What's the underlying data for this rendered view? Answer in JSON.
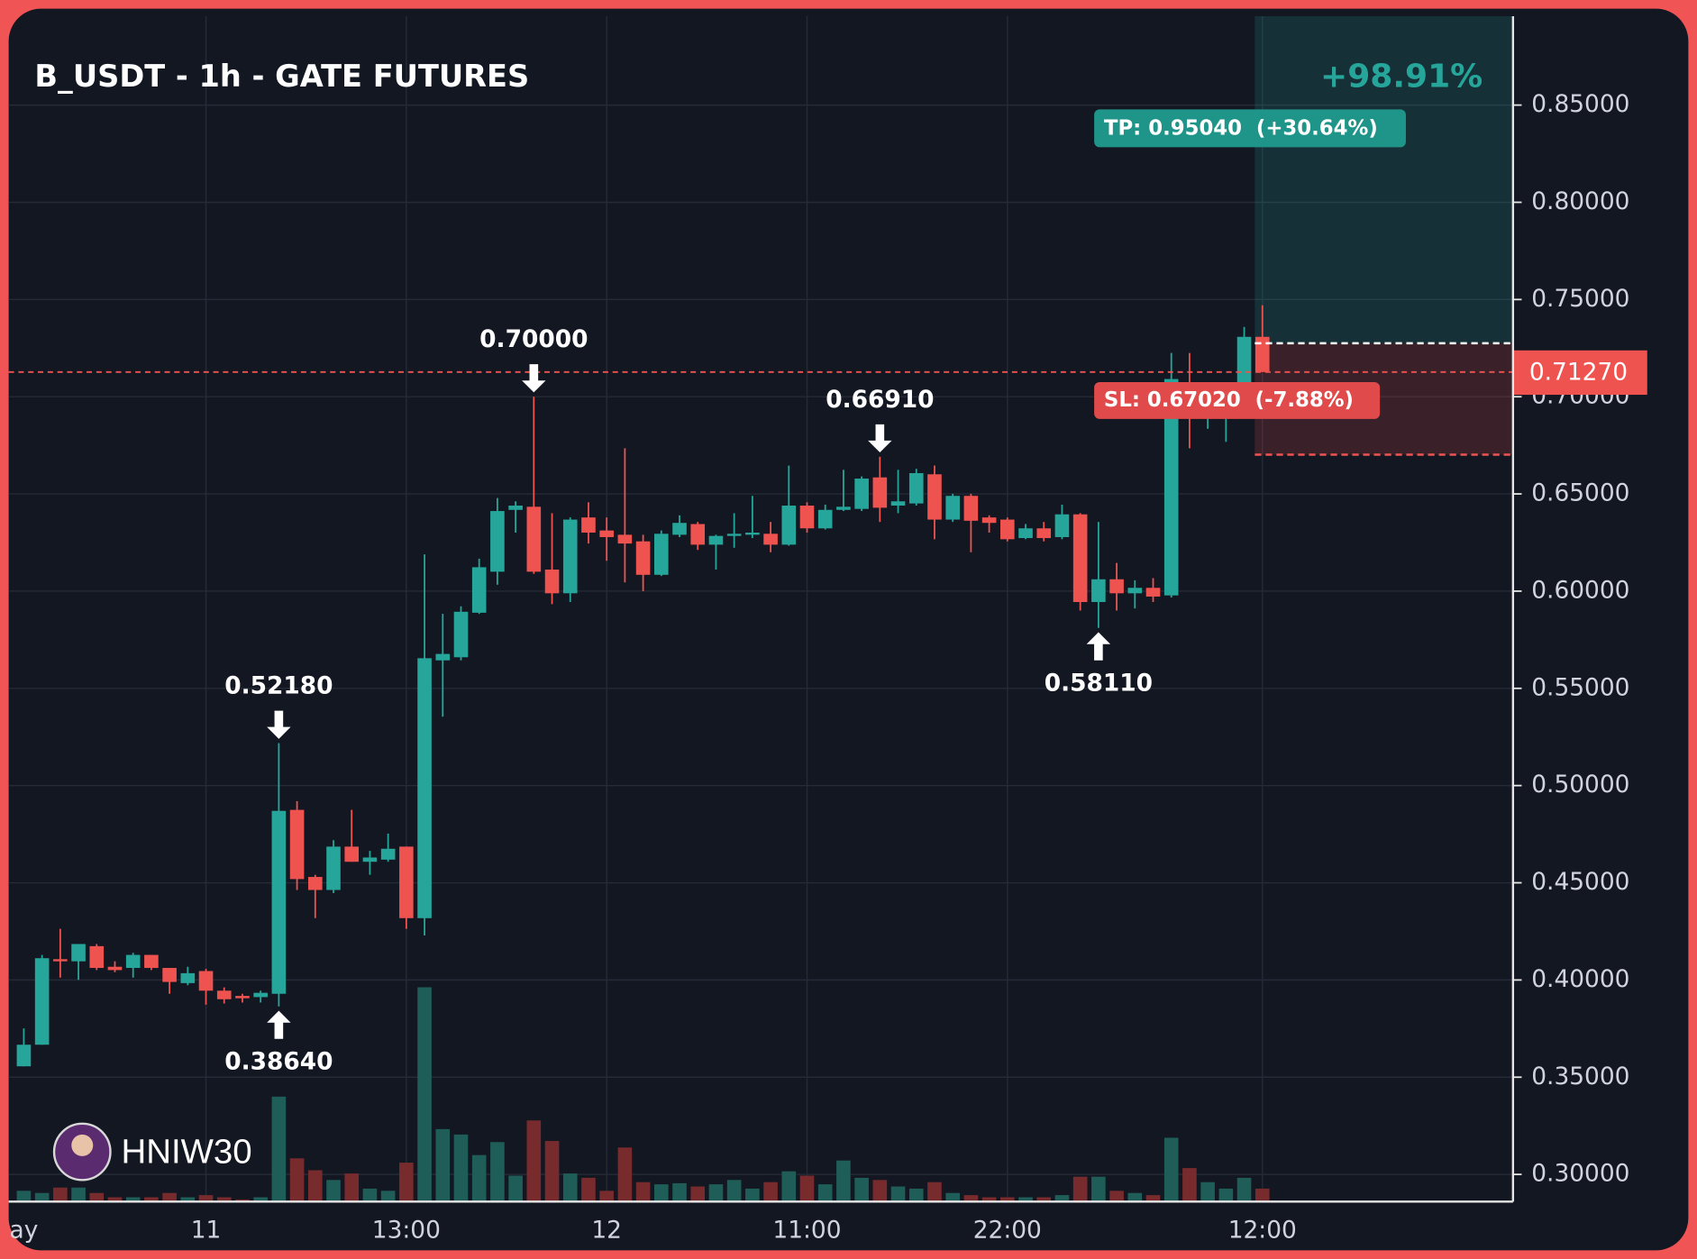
{
  "chart_data": {
    "type": "candlestick",
    "title": "B_USDT - 1h - GATE FUTURES",
    "watermark": "HNIW30",
    "up_color": "#26a69a",
    "down_color": "#ef5350",
    "up_volume_color": "#1f5d58",
    "down_volume_color": "#772b2c",
    "grid": true,
    "categories": [
      "ay",
      null,
      null,
      null,
      null,
      null,
      null,
      null,
      null,
      null,
      "11",
      null,
      null,
      null,
      null,
      null,
      null,
      null,
      null,
      null,
      null,
      "13:00",
      null,
      null,
      null,
      null,
      null,
      null,
      null,
      null,
      null,
      null,
      "12",
      null,
      null,
      null,
      null,
      null,
      null,
      null,
      null,
      null,
      null,
      "11:00",
      null,
      null,
      null,
      null,
      null,
      null,
      null,
      null,
      null,
      null,
      "22:00",
      null,
      null,
      null,
      null,
      null,
      null,
      null,
      null,
      null,
      null,
      null,
      null,
      null,
      "12:00"
    ],
    "open": [
      0.3556,
      0.3667,
      0.4107,
      0.4096,
      0.4174,
      0.4068,
      0.4062,
      0.4129,
      0.4062,
      0.3984,
      0.4046,
      0.3945,
      0.3918,
      0.3912,
      0.3929,
      0.4875,
      0.453,
      0.4463,
      0.4686,
      0.4608,
      0.4619,
      0.4686,
      0.4318,
      0.5644,
      0.566,
      0.5889,
      0.61,
      0.6418,
      0.6434,
      0.6111,
      0.5989,
      0.6379,
      0.6312,
      0.629,
      0.6256,
      0.6084,
      0.629,
      0.6345,
      0.6239,
      0.6284,
      0.629,
      0.6295,
      0.6239,
      0.644,
      0.6323,
      0.6418,
      0.6423,
      0.6585,
      0.644,
      0.6451,
      0.6601,
      0.6368,
      0.649,
      0.6379,
      0.6368,
      0.6273,
      0.6323,
      0.6278,
      0.6395,
      0.5944,
      0.6061,
      0.5989,
      0.6017,
      0.5978,
      0.7025,
      0.6902,
      0.6902,
      0.6952,
      0.7308
    ],
    "high": [
      0.3751,
      0.4129,
      0.4263,
      0.4185,
      0.4185,
      0.4096,
      0.414,
      0.4129,
      0.4062,
      0.4068,
      0.4057,
      0.3962,
      0.3929,
      0.3945,
      0.5218,
      0.492,
      0.4541,
      0.4719,
      0.4875,
      0.4664,
      0.4753,
      0.4686,
      0.6189,
      0.5883,
      0.5922,
      0.6167,
      0.6479,
      0.6462,
      0.7,
      0.6401,
      0.6379,
      0.6457,
      0.6379,
      0.6735,
      0.629,
      0.6312,
      0.639,
      0.6356,
      0.629,
      0.6401,
      0.649,
      0.6356,
      0.6646,
      0.6457,
      0.6445,
      0.6624,
      0.659,
      0.6691,
      0.6624,
      0.6629,
      0.6646,
      0.6501,
      0.6501,
      0.639,
      0.6379,
      0.6345,
      0.6356,
      0.6445,
      0.6401,
      0.6356,
      0.6145,
      0.6056,
      0.6067,
      0.7225,
      0.7225,
      0.698,
      0.6991,
      0.7359,
      0.747
    ],
    "low": [
      0.3556,
      0.3667,
      0.4012,
      0.4001,
      0.4051,
      0.404,
      0.4012,
      0.4051,
      0.3929,
      0.3973,
      0.3873,
      0.3879,
      0.3884,
      0.3884,
      0.3864,
      0.4463,
      0.4318,
      0.4447,
      0.4608,
      0.4541,
      0.4608,
      0.4263,
      0.4229,
      0.5354,
      0.5644,
      0.5883,
      0.6033,
      0.6301,
      0.6089,
      0.5933,
      0.5944,
      0.6245,
      0.6156,
      0.6045,
      0.6,
      0.6078,
      0.6278,
      0.6212,
      0.6111,
      0.6223,
      0.6273,
      0.62,
      0.6234,
      0.6301,
      0.6317,
      0.6412,
      0.6412,
      0.6356,
      0.6401,
      0.644,
      0.6267,
      0.6356,
      0.62,
      0.6301,
      0.6256,
      0.6267,
      0.6256,
      0.6267,
      0.59,
      0.5811,
      0.59,
      0.5911,
      0.5944,
      0.5967,
      0.6735,
      0.6835,
      0.6768,
      0.6935,
      0.7127
    ],
    "close": [
      0.3667,
      0.4112,
      0.4096,
      0.4185,
      0.4062,
      0.4051,
      0.4129,
      0.4062,
      0.399,
      0.4035,
      0.3945,
      0.3901,
      0.3906,
      0.3934,
      0.487,
      0.4519,
      0.4463,
      0.4686,
      0.4608,
      0.463,
      0.4675,
      0.4318,
      0.5655,
      0.5677,
      0.5894,
      0.6123,
      0.6412,
      0.644,
      0.61,
      0.5989,
      0.6368,
      0.6301,
      0.6278,
      0.6245,
      0.6084,
      0.6295,
      0.6351,
      0.6239,
      0.6284,
      0.6295,
      0.6301,
      0.6239,
      0.644,
      0.6323,
      0.6418,
      0.6434,
      0.6579,
      0.6429,
      0.6462,
      0.6607,
      0.6368,
      0.649,
      0.6362,
      0.6351,
      0.6267,
      0.6323,
      0.6273,
      0.6395,
      0.5944,
      0.6061,
      0.5989,
      0.6017,
      0.5972,
      0.7091,
      0.6891,
      0.6924,
      0.6924,
      0.7308,
      0.7127
    ],
    "volume": [
      10,
      8,
      13,
      13,
      8,
      4,
      4,
      4,
      8,
      4,
      6,
      4,
      2,
      4,
      97,
      40,
      29,
      20,
      26,
      12,
      10,
      36,
      198,
      67,
      62,
      43,
      55,
      24,
      75,
      56,
      26,
      22,
      10,
      50,
      18,
      16,
      17,
      14,
      16,
      20,
      12,
      18,
      28,
      24,
      16,
      38,
      22,
      20,
      14,
      12,
      18,
      8,
      6,
      4,
      4,
      4,
      4,
      6,
      23,
      23,
      10,
      8,
      6,
      59,
      31,
      18,
      12,
      22,
      12
    ],
    "ylim": [
      0.286,
      0.8957
    ],
    "yticks": [
      {
        "value": 0.3,
        "label": "0.30000"
      },
      {
        "value": 0.35,
        "label": "0.35000"
      },
      {
        "value": 0.4,
        "label": "0.40000"
      },
      {
        "value": 0.45,
        "label": "0.45000"
      },
      {
        "value": 0.5,
        "label": "0.50000"
      },
      {
        "value": 0.55,
        "label": "0.55000"
      },
      {
        "value": 0.6,
        "label": "0.60000"
      },
      {
        "value": 0.65,
        "label": "0.65000"
      },
      {
        "value": 0.7,
        "label": "0.70000"
      },
      {
        "value": 0.75,
        "label": "0.75000"
      },
      {
        "value": 0.8,
        "label": "0.80000"
      },
      {
        "value": 0.85,
        "label": "0.85000"
      }
    ],
    "last_price": {
      "value": 0.7127,
      "label": "0.71270"
    },
    "annotations": [
      {
        "text": "0.52180",
        "value": 0.5218,
        "kind": "high"
      },
      {
        "text": "0.38640",
        "value": 0.3864,
        "kind": "low"
      },
      {
        "text": "0.70000",
        "value": 0.7,
        "kind": "high"
      },
      {
        "text": "0.66910",
        "value": 0.6691,
        "kind": "high"
      },
      {
        "text": "0.58110",
        "value": 0.5811,
        "kind": "low"
      }
    ],
    "position": {
      "entry": 0.7275,
      "take_profit": 0.9504,
      "stop_loss": 0.6702,
      "tp_label": "TP: 0.95040  (+30.64%)",
      "sl_label": "SL: 0.67020  (-7.88%)",
      "result_label": "+98.91%"
    }
  }
}
